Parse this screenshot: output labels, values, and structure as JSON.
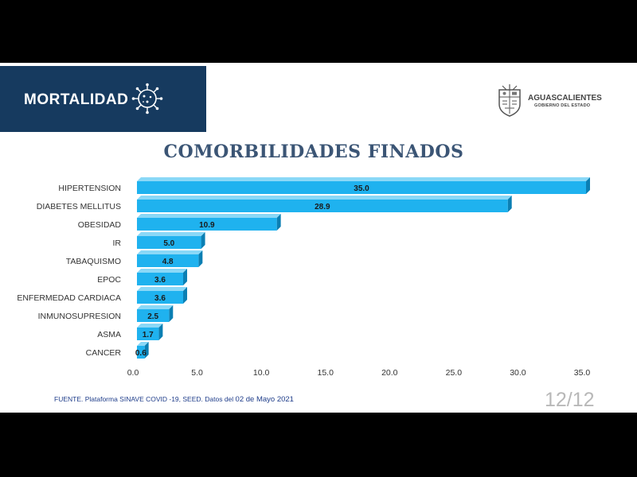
{
  "header": {
    "section_title": "MORTALIDAD",
    "logo_name": "AGUASCALIENTES",
    "logo_subtitle": "GOBIERNO DEL ESTADO"
  },
  "chart_data": {
    "type": "bar",
    "orientation": "horizontal",
    "title": "COMORBILIDADES FINADOS",
    "categories": [
      "HIPERTENSION",
      "DIABETES MELLITUS",
      "OBESIDAD",
      "IR",
      "TABAQUISMO",
      "EPOC",
      "ENFERMEDAD CARDIACA",
      "INMUNOSUPRESION",
      "ASMA",
      "CANCER"
    ],
    "values": [
      35.0,
      28.9,
      10.9,
      5.0,
      4.8,
      3.6,
      3.6,
      2.5,
      1.7,
      0.6
    ],
    "value_labels": [
      "35.0",
      "28.9",
      "10.9",
      "5.0",
      "4.8",
      "3.6",
      "3.6",
      "2.5",
      "1.7",
      "0.6"
    ],
    "xticks": [
      "0.0",
      "5.0",
      "10.0",
      "15.0",
      "20.0",
      "25.0",
      "30.0",
      "35.0"
    ],
    "xlim": [
      0,
      35
    ],
    "bar_color": "#1fb2ef",
    "grid": false
  },
  "footer": {
    "source_text": "FUENTE. Plataforma SINAVE COVID -19, SEED. Datos del ",
    "source_date": "02 de Mayo 2021",
    "page_number": "12/12"
  }
}
